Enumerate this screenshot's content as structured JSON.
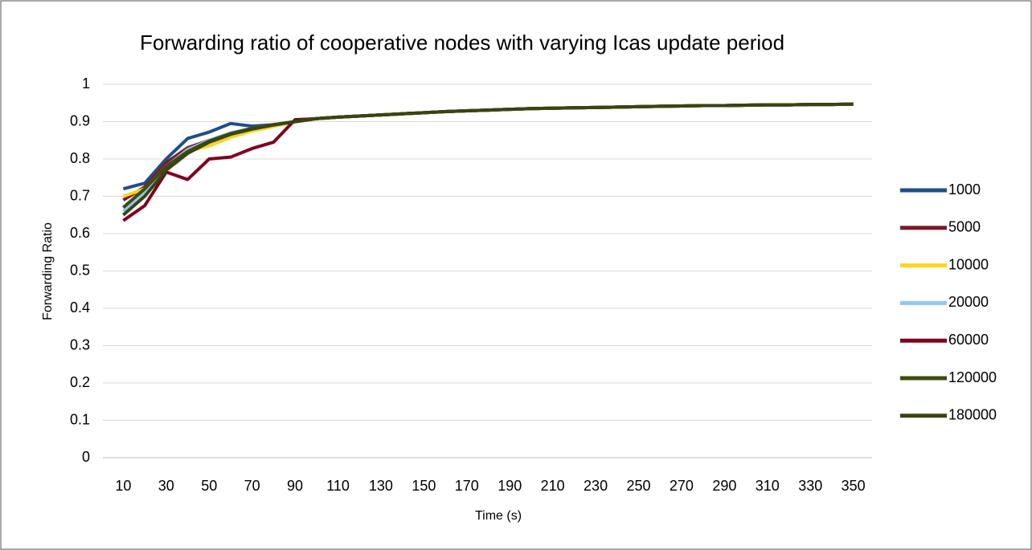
{
  "chart_data": {
    "type": "line",
    "title": "Forwarding ratio of cooperative nodes with varying Icas update period",
    "xlabel": "Time (s)",
    "ylabel": "Forwarding Ratio",
    "x": [
      10,
      20,
      30,
      40,
      50,
      60,
      70,
      80,
      90,
      100,
      110,
      120,
      130,
      140,
      150,
      160,
      170,
      180,
      190,
      200,
      210,
      220,
      230,
      240,
      250,
      260,
      270,
      280,
      290,
      300,
      310,
      320,
      330,
      340,
      350
    ],
    "xlim": [
      5,
      355
    ],
    "xticks": [
      10,
      30,
      50,
      70,
      90,
      110,
      130,
      150,
      170,
      190,
      210,
      230,
      250,
      270,
      290,
      310,
      330,
      350
    ],
    "ylim": [
      0,
      1
    ],
    "yticks": [
      0,
      0.1,
      0.2,
      0.3,
      0.4,
      0.5,
      0.6,
      0.7,
      0.8,
      0.9,
      1
    ],
    "grid": true,
    "legend": "right",
    "series": [
      {
        "name": "1000",
        "color": "#1f4e8c",
        "values": [
          0.72,
          0.735,
          0.8,
          0.855,
          0.872,
          0.895,
          0.888,
          0.892,
          0.9,
          0.908,
          0.912,
          0.915,
          0.918,
          0.921,
          0.924,
          0.927,
          0.929,
          0.931,
          0.933,
          0.935,
          0.936,
          0.937,
          0.938,
          0.939,
          0.94,
          0.941,
          0.942,
          0.943,
          0.943,
          0.944,
          0.945,
          0.945,
          0.946,
          0.946,
          0.947
        ]
      },
      {
        "name": "5000",
        "color": "#7b1a2c",
        "values": [
          0.69,
          0.725,
          0.79,
          0.83,
          0.85,
          0.868,
          0.88,
          0.89,
          0.9,
          0.908,
          0.912,
          0.915,
          0.918,
          0.921,
          0.924,
          0.927,
          0.929,
          0.931,
          0.933,
          0.935,
          0.936,
          0.937,
          0.938,
          0.939,
          0.94,
          0.941,
          0.942,
          0.943,
          0.943,
          0.944,
          0.945,
          0.945,
          0.946,
          0.946,
          0.947
        ]
      },
      {
        "name": "10000",
        "color": "#ffd320",
        "values": [
          0.7,
          0.72,
          0.78,
          0.82,
          0.835,
          0.858,
          0.875,
          0.887,
          0.9,
          0.908,
          0.912,
          0.915,
          0.918,
          0.921,
          0.924,
          0.927,
          0.929,
          0.931,
          0.933,
          0.935,
          0.936,
          0.937,
          0.938,
          0.939,
          0.94,
          0.941,
          0.942,
          0.943,
          0.943,
          0.944,
          0.945,
          0.945,
          0.946,
          0.946,
          0.947
        ]
      },
      {
        "name": "20000",
        "color": "#8fc8f0",
        "values": [
          0.66,
          0.71,
          0.78,
          0.825,
          0.85,
          0.87,
          0.882,
          0.892,
          0.9,
          0.908,
          0.912,
          0.915,
          0.918,
          0.921,
          0.924,
          0.927,
          0.929,
          0.931,
          0.933,
          0.935,
          0.936,
          0.937,
          0.938,
          0.939,
          0.94,
          0.941,
          0.942,
          0.943,
          0.943,
          0.944,
          0.945,
          0.945,
          0.946,
          0.946,
          0.947
        ]
      },
      {
        "name": "60000",
        "color": "#800020",
        "values": [
          0.635,
          0.675,
          0.765,
          0.745,
          0.8,
          0.805,
          0.828,
          0.845,
          0.905,
          0.908,
          0.912,
          0.915,
          0.918,
          0.921,
          0.924,
          0.927,
          0.929,
          0.931,
          0.933,
          0.935,
          0.936,
          0.937,
          0.938,
          0.939,
          0.94,
          0.941,
          0.942,
          0.943,
          0.943,
          0.944,
          0.945,
          0.945,
          0.946,
          0.946,
          0.947
        ]
      },
      {
        "name": "120000",
        "color": "#3d4c10",
        "values": [
          0.67,
          0.72,
          0.78,
          0.82,
          0.848,
          0.868,
          0.882,
          0.892,
          0.9,
          0.908,
          0.912,
          0.915,
          0.918,
          0.921,
          0.924,
          0.927,
          0.929,
          0.931,
          0.933,
          0.935,
          0.936,
          0.937,
          0.938,
          0.939,
          0.94,
          0.941,
          0.942,
          0.943,
          0.943,
          0.944,
          0.945,
          0.945,
          0.946,
          0.946,
          0.947
        ]
      },
      {
        "name": "180000",
        "color": "#374512",
        "values": [
          0.65,
          0.7,
          0.77,
          0.815,
          0.845,
          0.866,
          0.88,
          0.891,
          0.9,
          0.908,
          0.912,
          0.915,
          0.918,
          0.921,
          0.924,
          0.927,
          0.929,
          0.931,
          0.933,
          0.935,
          0.936,
          0.937,
          0.938,
          0.939,
          0.94,
          0.941,
          0.942,
          0.943,
          0.943,
          0.944,
          0.945,
          0.945,
          0.946,
          0.946,
          0.947
        ]
      }
    ]
  }
}
